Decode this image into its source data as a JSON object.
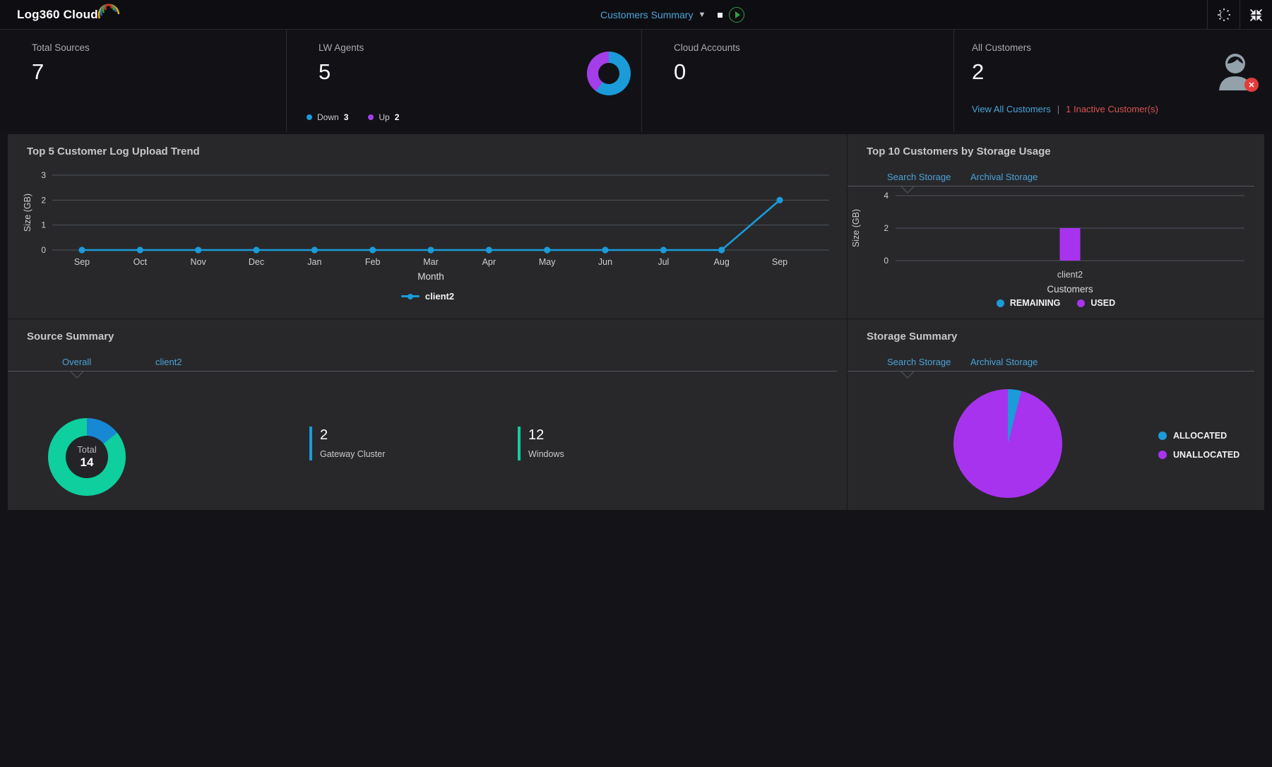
{
  "topbar": {
    "logo": "Log360 Cloud",
    "nav_dropdown": "Customers Summary",
    "theme_color": "#2f9e44"
  },
  "stats": {
    "cards": [
      {
        "label": "Total Sources",
        "value": "7"
      },
      {
        "label": "LW Agents",
        "value": "5",
        "legend": [
          {
            "label": "Down",
            "count": "3",
            "color": "#1b9bd8"
          },
          {
            "label": "Up",
            "count": "2",
            "color": "#a43ee8"
          }
        ]
      },
      {
        "label": "Cloud Accounts",
        "value": "0"
      },
      {
        "label": "All Customers",
        "value": "2",
        "link": "View All Customers",
        "separator": "|",
        "alert": "1 Inactive Customer(s)"
      }
    ]
  },
  "panels": {
    "log_trend": {
      "title": "Top 5 Customer Log Upload Trend",
      "legend": [
        {
          "label": "client2",
          "color": "#1b9bd8"
        }
      ]
    },
    "storage_usage": {
      "title": "Top 10 Customers by Storage Usage",
      "tabs": [
        {
          "label": "Search Storage",
          "active": true
        },
        {
          "label": "Archival Storage",
          "active": false
        }
      ],
      "legend": [
        {
          "label": "REMAINING",
          "color": "#1b9bd8"
        },
        {
          "label": "USED",
          "color": "#a833ee"
        }
      ]
    },
    "source_summary": {
      "title": "Source Summary",
      "tabs": [
        {
          "label": "Overall",
          "active": true
        },
        {
          "label": "client2",
          "active": false
        }
      ],
      "donut_center": {
        "label": "Total",
        "value": "14"
      },
      "stats": [
        {
          "value": "2",
          "label": "Gateway Cluster",
          "color": "#1b9bd8"
        },
        {
          "value": "12",
          "label": "Windows",
          "color": "#0ecf9d"
        }
      ]
    },
    "storage_summary": {
      "title": "Storage Summary",
      "tabs": [
        {
          "label": "Search Storage",
          "active": true
        },
        {
          "label": "Archival Storage",
          "active": false
        }
      ],
      "legend": [
        {
          "label": "ALLOCATED",
          "color": "#1b9bd8"
        },
        {
          "label": "UNALLOCATED",
          "color": "#a833ee"
        }
      ]
    }
  },
  "chart_data": [
    {
      "id": "lw-agents-donut",
      "type": "pie",
      "donut": true,
      "labels": [
        "Down",
        "Up"
      ],
      "values": [
        3,
        2
      ],
      "colors": [
        "#1b9bd8",
        "#a43ee8"
      ]
    },
    {
      "id": "log-upload-trend",
      "type": "line",
      "title": "Top 5 Customer Log Upload Trend",
      "xlabel": "Month",
      "ylabel": "Size (GB)",
      "categories": [
        "Sep",
        "Oct",
        "Nov",
        "Dec",
        "Jan",
        "Feb",
        "Mar",
        "Apr",
        "May",
        "Jun",
        "Jul",
        "Aug",
        "Sep"
      ],
      "series": [
        {
          "name": "client2",
          "color": "#1b9bd8",
          "values": [
            0,
            0,
            0,
            0,
            0,
            0,
            0,
            0,
            0,
            0,
            0,
            0,
            2
          ]
        }
      ],
      "yticks": [
        0,
        1,
        2,
        3
      ],
      "ylim": [
        0,
        3
      ],
      "grid": true,
      "legend_position": "bottom"
    },
    {
      "id": "storage-usage-bar",
      "type": "bar",
      "title": "Top 10 Customers by Storage Usage",
      "xlabel": "Customers",
      "ylabel": "Size (GB)",
      "categories": [
        "client2"
      ],
      "series": [
        {
          "name": "REMAINING",
          "color": "#1b9bd8",
          "values": [
            0
          ]
        },
        {
          "name": "USED",
          "color": "#a833ee",
          "values": [
            2
          ]
        }
      ],
      "yticks": [
        0,
        2,
        4
      ],
      "ylim": [
        0,
        4
      ],
      "grid": true,
      "legend_position": "bottom",
      "stacked": true
    },
    {
      "id": "source-summary-donut",
      "type": "pie",
      "donut": true,
      "center_label": "Total",
      "center_value": 14,
      "labels": [
        "Gateway Cluster",
        "Windows"
      ],
      "values": [
        2,
        12
      ],
      "colors": [
        "#1788d3",
        "#0ecf9d"
      ]
    },
    {
      "id": "storage-summary-pie",
      "type": "pie",
      "labels": [
        "ALLOCATED",
        "UNALLOCATED"
      ],
      "values": [
        4,
        96
      ],
      "colors": [
        "#1b9bd8",
        "#a833ee"
      ]
    }
  ]
}
